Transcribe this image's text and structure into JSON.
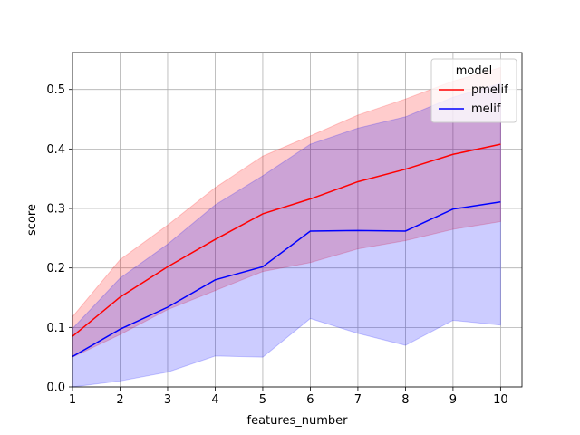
{
  "chart_data": {
    "type": "line",
    "title": "",
    "xlabel": "features_number",
    "ylabel": "score",
    "xlim": [
      1,
      10.45
    ],
    "ylim": [
      0,
      0.562
    ],
    "xticks": [
      1,
      2,
      3,
      4,
      5,
      6,
      7,
      8,
      9,
      10
    ],
    "xtick_labels": [
      "1",
      "2",
      "3",
      "4",
      "5",
      "6",
      "7",
      "8",
      "9",
      "10"
    ],
    "yticks": [
      0.0,
      0.1,
      0.2,
      0.3,
      0.4,
      0.5
    ],
    "ytick_labels": [
      "0.0",
      "0.1",
      "0.2",
      "0.3",
      "0.4",
      "0.5"
    ],
    "grid": true,
    "legend": {
      "title": "model",
      "placement": "top-right"
    },
    "x": [
      1,
      2,
      3,
      4,
      5,
      6,
      7,
      8,
      9,
      10
    ],
    "series": [
      {
        "name": "pmelif",
        "color": "#ff0000",
        "band_color": "#ff0000",
        "values": [
          0.085,
          0.151,
          0.202,
          0.248,
          0.291,
          0.316,
          0.345,
          0.366,
          0.391,
          0.408
        ],
        "upper": [
          0.118,
          0.214,
          0.272,
          0.335,
          0.388,
          0.422,
          0.457,
          0.484,
          0.514,
          0.537
        ],
        "lower": [
          0.05,
          0.088,
          0.13,
          0.162,
          0.194,
          0.209,
          0.232,
          0.246,
          0.265,
          0.278
        ]
      },
      {
        "name": "melif",
        "color": "#0000ff",
        "band_color": "#0000ff",
        "values": [
          0.051,
          0.097,
          0.134,
          0.18,
          0.202,
          0.262,
          0.263,
          0.262,
          0.299,
          0.311
        ],
        "upper": [
          0.098,
          0.183,
          0.24,
          0.306,
          0.355,
          0.408,
          0.435,
          0.454,
          0.487,
          0.51
        ],
        "lower": [
          0.0,
          0.01,
          0.025,
          0.052,
          0.05,
          0.115,
          0.09,
          0.07,
          0.112,
          0.104
        ]
      }
    ]
  }
}
